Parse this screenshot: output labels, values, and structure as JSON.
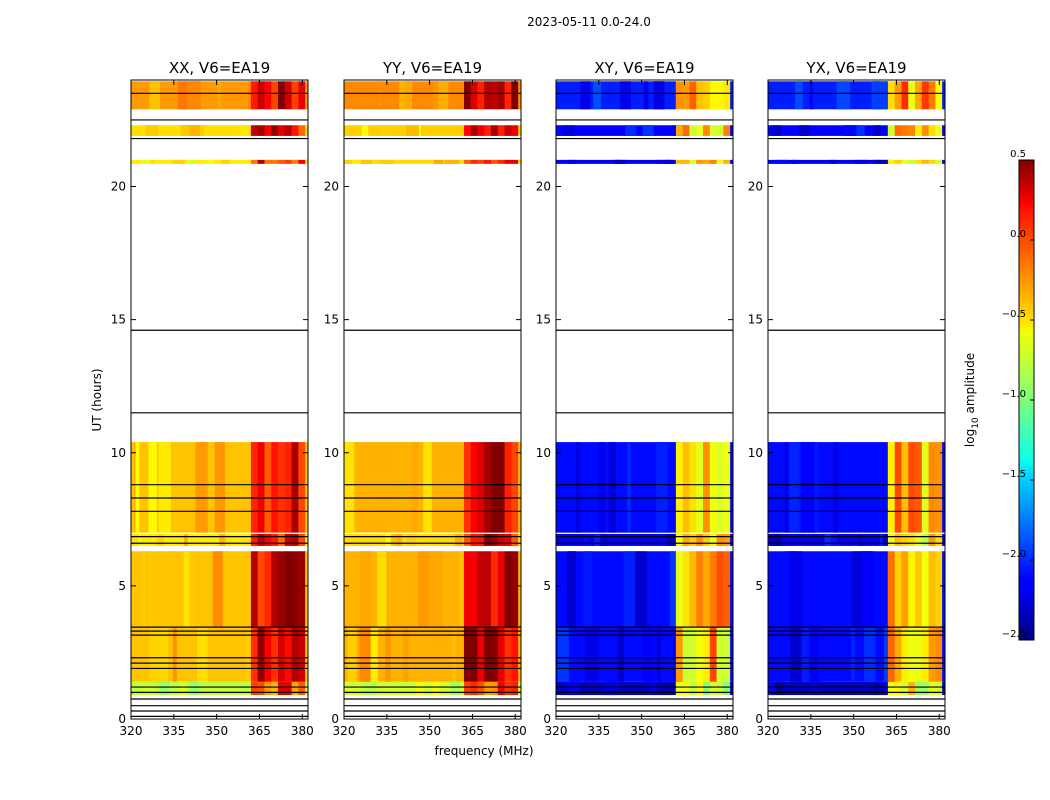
{
  "chart_data": {
    "type": "heatmap",
    "suptitle": "2023-05-11 0.0-24.0",
    "xlabel": "frequency (MHz)",
    "ylabel": "UT (hours)",
    "xlim": [
      320,
      382
    ],
    "ylim": [
      0,
      24
    ],
    "xticks": [
      320,
      335,
      350,
      365,
      380
    ],
    "xtick_labels": [
      "320",
      "335",
      "350",
      "365",
      "380"
    ],
    "yticks": [
      0,
      5,
      10,
      15,
      20
    ],
    "ytick_labels": [
      "0",
      "5",
      "10",
      "15",
      "20"
    ],
    "colorbar": {
      "label_main": "log",
      "label_sub": "10",
      "label_rest": " amplitude",
      "range": [
        -2.5,
        0.5
      ],
      "ticks": [
        0.5,
        0.0,
        -0.5,
        -1.0,
        -1.5,
        -2.0,
        -2.5
      ],
      "tick_labels": [
        "0.5",
        "0.0",
        "−0.5",
        "−1.0",
        "−1.5",
        "−2.0",
        "−2.5"
      ],
      "colormap": "jet"
    },
    "panels": [
      {
        "title": "XX, V6=EA19",
        "kind": "parallel",
        "base_level": -0.45,
        "band_level": 0.1
      },
      {
        "title": "YY, V6=EA19",
        "kind": "parallel",
        "base_level": -0.4,
        "band_level": 0.2
      },
      {
        "title": "XY, V6=EA19",
        "kind": "cross",
        "base_level": -2.1,
        "band_level": -0.5
      },
      {
        "title": "YX, V6=EA19",
        "kind": "cross",
        "base_level": -2.1,
        "band_level": -0.5
      }
    ],
    "rfi_band_mhz": [
      362,
      381
    ],
    "data_blocks_ut": [
      {
        "start": 0.9,
        "end": 1.4,
        "level": -0.9
      },
      {
        "start": 1.4,
        "end": 3.45,
        "level": 0.0
      },
      {
        "start": 3.45,
        "end": 6.3,
        "level": 0.0
      },
      {
        "start": 6.5,
        "end": 6.95,
        "level": -0.3
      },
      {
        "start": 7.0,
        "end": 10.4,
        "level": 0.0
      },
      {
        "start": 20.85,
        "end": 21.0,
        "level": -0.3
      },
      {
        "start": 21.9,
        "end": 22.3,
        "level": -0.2
      },
      {
        "start": 22.9,
        "end": 23.95,
        "level": 0.3
      }
    ],
    "gap_lines_ut": [
      0.1,
      0.3,
      0.5,
      0.75,
      1.0,
      1.2,
      1.9,
      2.1,
      2.3,
      3.15,
      3.3,
      3.45,
      6.6,
      6.85,
      7.8,
      8.3,
      8.8,
      11.5,
      14.6,
      21.8,
      22.5,
      23.5
    ]
  }
}
